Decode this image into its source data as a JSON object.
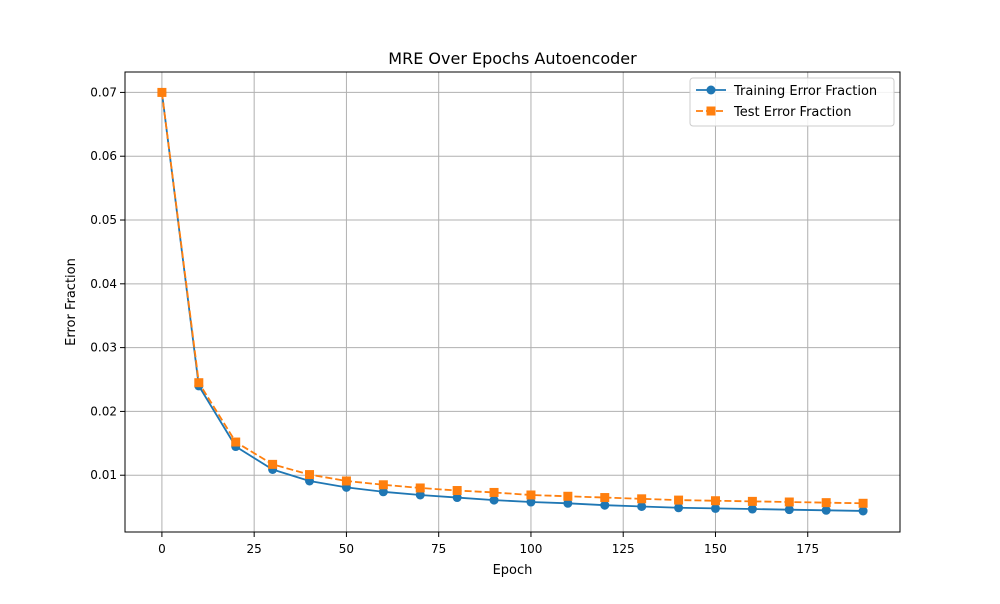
{
  "chart_data": {
    "type": "line",
    "title": "MRE Over Epochs Autoencoder",
    "xlabel": "Epoch",
    "ylabel": "Error Fraction",
    "xlim": [
      -10,
      200
    ],
    "ylim": [
      0.0011,
      0.0732
    ],
    "x_ticks": [
      0,
      25,
      50,
      75,
      100,
      125,
      150,
      175
    ],
    "y_ticks": [
      0.01,
      0.02,
      0.03,
      0.04,
      0.05,
      0.06,
      0.07
    ],
    "grid": true,
    "legend_position": "top-right",
    "x": [
      0,
      10,
      20,
      30,
      40,
      50,
      60,
      70,
      80,
      90,
      100,
      110,
      120,
      130,
      140,
      150,
      160,
      170,
      180,
      190
    ],
    "series": [
      {
        "name": "Training Error Fraction",
        "color": "#1f77b4",
        "line_style": "solid",
        "marker": "circle",
        "values": [
          0.07,
          0.024,
          0.0145,
          0.0109,
          0.0091,
          0.0081,
          0.0074,
          0.0069,
          0.0065,
          0.0061,
          0.0058,
          0.0056,
          0.0053,
          0.0051,
          0.0049,
          0.0048,
          0.0047,
          0.0046,
          0.0045,
          0.0044
        ]
      },
      {
        "name": "Test Error Fraction",
        "color": "#ff7f0e",
        "line_style": "dashed",
        "marker": "square",
        "values": [
          0.07,
          0.0245,
          0.0152,
          0.0117,
          0.0101,
          0.0091,
          0.0085,
          0.008,
          0.0076,
          0.0073,
          0.0069,
          0.0067,
          0.0065,
          0.0063,
          0.0061,
          0.006,
          0.0059,
          0.0058,
          0.0057,
          0.0056
        ]
      }
    ]
  }
}
